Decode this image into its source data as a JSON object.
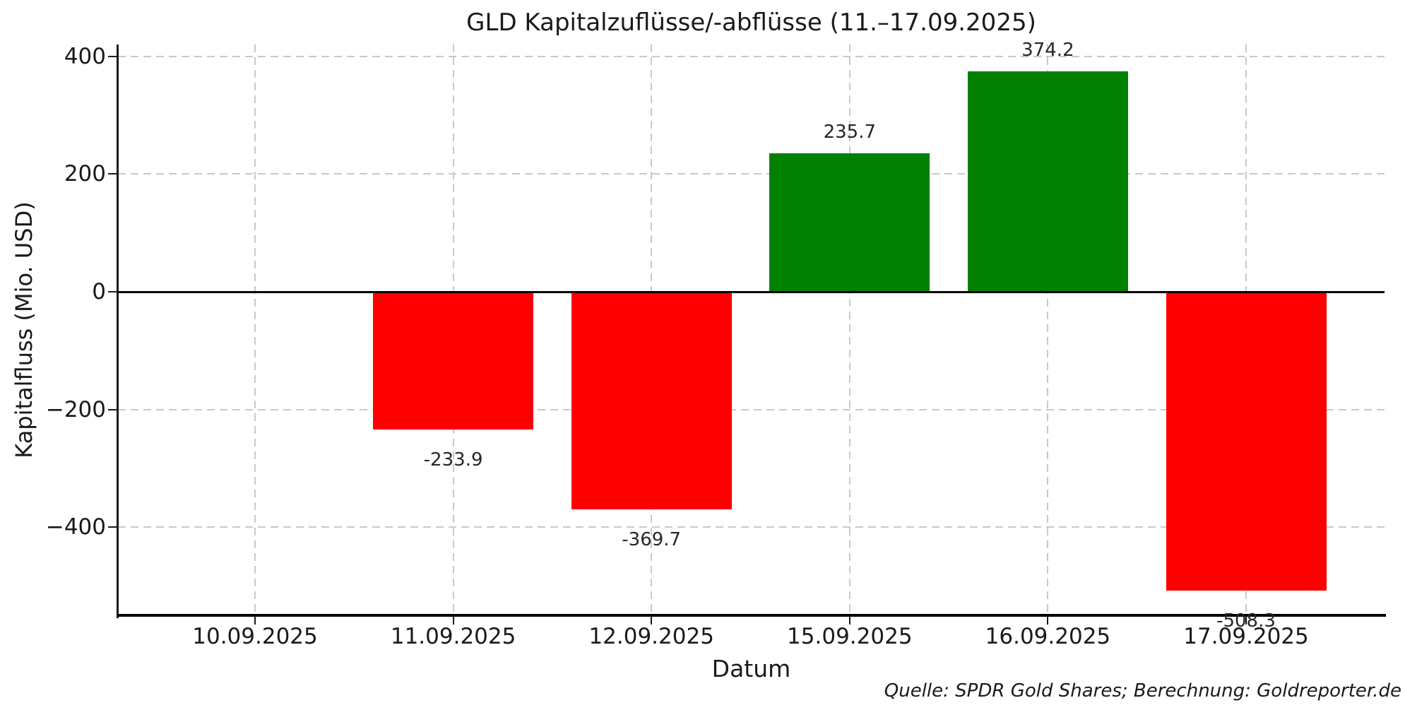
{
  "chart_data": {
    "type": "bar",
    "title": "GLD Kapitalzuflüsse/-abflüsse (11.–17.09.2025)",
    "xlabel": "Datum",
    "ylabel": "Kapitalfluss (Mio. USD)",
    "source_note": "Quelle: SPDR Gold Shares; Berechnung: Goldreporter.de",
    "categories": [
      "10.09.2025",
      "11.09.2025",
      "12.09.2025",
      "15.09.2025",
      "16.09.2025",
      "17.09.2025"
    ],
    "values": [
      0,
      -233.9,
      -369.7,
      235.7,
      374.2,
      -508.3
    ],
    "bar_labels": [
      "",
      "-233.9",
      "-369.7",
      "235.7",
      "374.2",
      "-508.3"
    ],
    "positive_color": "#008000",
    "negative_color": "#ff0000",
    "ylim": [
      -551,
      420
    ],
    "yticks": [
      400,
      200,
      0,
      -200,
      -400
    ],
    "ytick_labels": [
      "400",
      "200",
      "0",
      "−200",
      "−400"
    ],
    "grid": "dashed both axes",
    "grid_color": "#c9c9c9",
    "zero_line_color": "#000000",
    "legend": "none"
  }
}
